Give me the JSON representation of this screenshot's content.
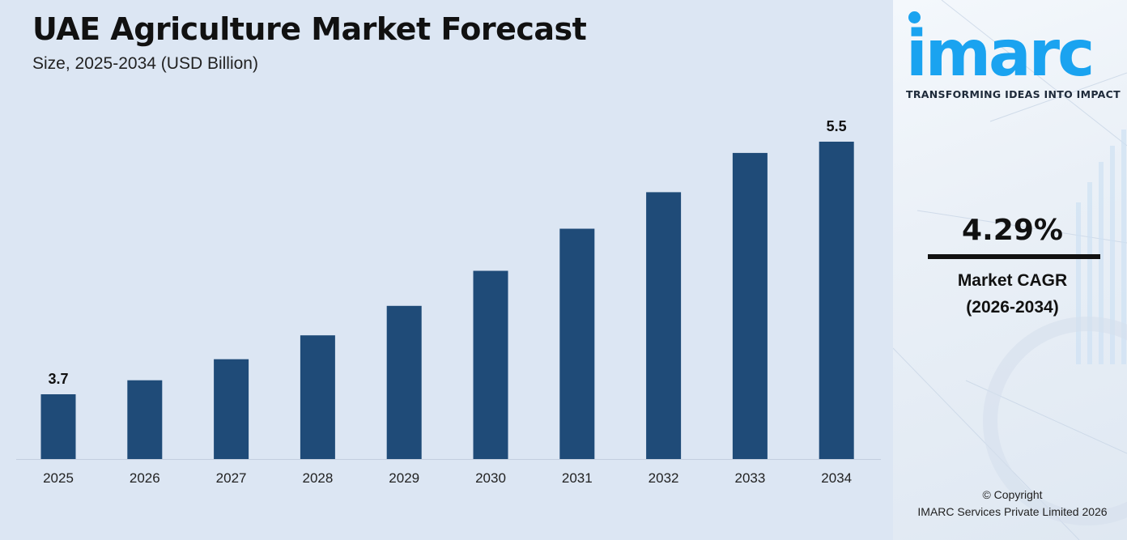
{
  "title": "UAE Agriculture Market Forecast",
  "subtitle": "Size, 2025-2034 (USD Billion)",
  "colors": {
    "bar": "#1f4b78",
    "brand": "#1aa3f0",
    "background": "#dce6f3"
  },
  "chart_data": {
    "type": "bar",
    "title": "UAE Agriculture Market Forecast",
    "subtitle": "Size, 2025-2034 (USD Billion)",
    "xlabel": "",
    "ylabel": "",
    "categories": [
      "2025",
      "2026",
      "2027",
      "2028",
      "2029",
      "2030",
      "2031",
      "2032",
      "2033",
      "2034"
    ],
    "values": [
      3.7,
      3.8,
      3.95,
      4.12,
      4.33,
      4.58,
      4.88,
      5.14,
      5.42,
      5.5
    ],
    "data_labels": {
      "0": "3.7",
      "9": "5.5"
    },
    "grid": false,
    "legend": "none"
  },
  "brand": {
    "logo_text": "imarc",
    "tagline": "TRANSFORMING IDEAS INTO IMPACT"
  },
  "cagr": {
    "value": "4.29%",
    "label": "Market CAGR",
    "period": "(2026-2034)"
  },
  "copyright": {
    "line1": "© Copyright",
    "line2": "IMARC Services Private Limited 2026"
  }
}
